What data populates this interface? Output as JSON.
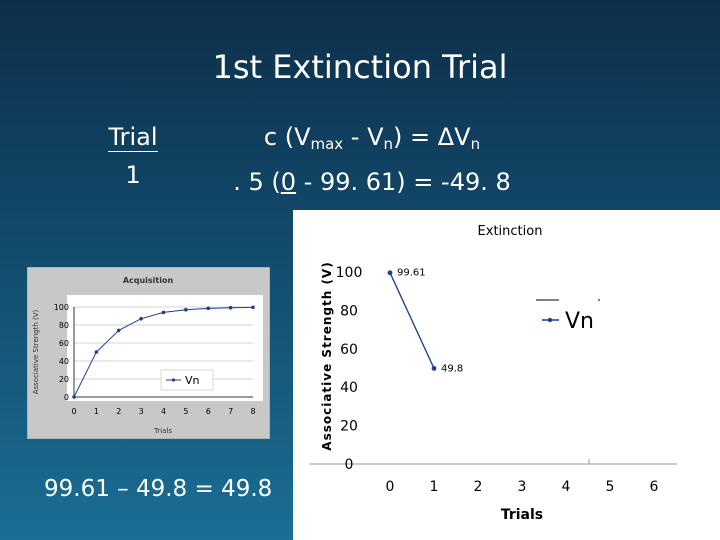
{
  "slide": {
    "title": "1st Extinction Trial",
    "trial_label": "Trial",
    "trial_number": "1",
    "formula_line1": {
      "c": "c (V",
      "max": "max",
      "mid": " - V",
      "n": "n",
      "end": ") = ΔV",
      "n2": "n"
    },
    "formula_line2": {
      "pre": ". 5 (",
      "zero": "0",
      "post": " -  99. 61) = -49. 8"
    },
    "bottom_equation": "99.61 – 49.8 = 49.8"
  },
  "colors": {
    "background_top": "#0d2f4a",
    "background_bottom": "#1b6e94",
    "series": "#1f3f8f",
    "text": "#ffffff"
  },
  "chart_data": [
    {
      "type": "line",
      "title": "Acquisition",
      "xlabel": "Trials",
      "ylabel": "Associative Strength (V)",
      "x": [
        0,
        1,
        2,
        3,
        4,
        5,
        6,
        7,
        8
      ],
      "xlim": [
        0,
        8
      ],
      "ylim": [
        0,
        100
      ],
      "yticks": [
        0,
        20,
        40,
        60,
        80,
        100
      ],
      "series": [
        {
          "name": "Vn",
          "values": [
            0,
            50,
            74,
            87,
            94,
            97,
            98.5,
            99.2,
            99.6
          ]
        }
      ],
      "legend": "Vn",
      "legend_position": "bottom-center",
      "grid": true
    },
    {
      "type": "line",
      "title": "Extinction",
      "xlabel": "Trials",
      "ylabel": "Associative Strength (V)",
      "x": [
        0,
        1
      ],
      "xticks": [
        0,
        1,
        2,
        3,
        4,
        5,
        6
      ],
      "ylim": [
        0,
        100
      ],
      "yticks": [
        0,
        20,
        40,
        60,
        80,
        100
      ],
      "series": [
        {
          "name": "Vn",
          "values": [
            99.61,
            49.8
          ]
        }
      ],
      "data_labels": [
        "99.61",
        "49.8"
      ],
      "legend": "Vn",
      "legend_position": "right",
      "grid": false
    }
  ]
}
